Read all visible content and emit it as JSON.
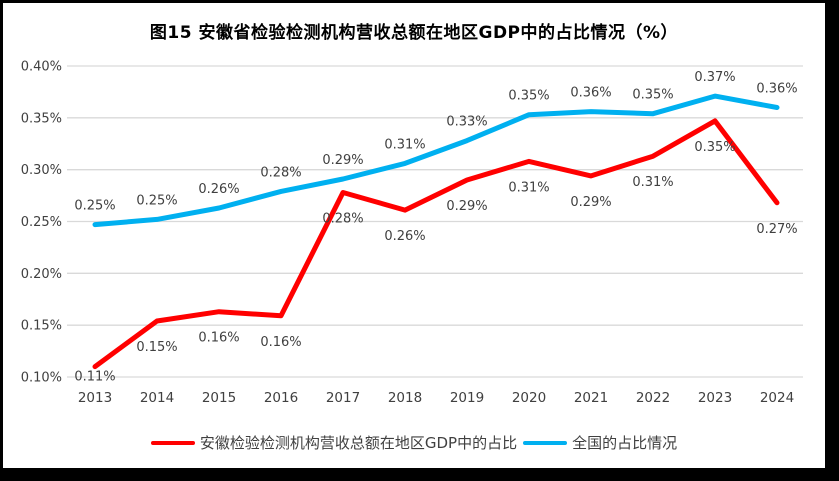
{
  "figure": {
    "label": "图15"
  },
  "chart_data": {
    "type": "line",
    "title": "图15  安徽省检验检测机构营收总额在地区GDP中的占比情况（%）",
    "xlabel": "",
    "ylabel": "",
    "unit": "%",
    "categories": [
      "2013",
      "2014",
      "2015",
      "2016",
      "2017",
      "2018",
      "2019",
      "2020",
      "2021",
      "2022",
      "2023",
      "2024"
    ],
    "y_ticks": [
      "0.40%",
      "0.35%",
      "0.30%",
      "0.25%",
      "0.20%",
      "0.15%",
      "0.10%"
    ],
    "ylim": [
      0.1,
      0.4
    ],
    "grid": "horizontal",
    "gridline_color": "#d9d9d9",
    "label_color": "#404040",
    "legend_position": "bottom",
    "series": [
      {
        "name": "安徽检验检测机构营收总额在地区GDP中的占比",
        "color": "#ff0000",
        "label_side": "below",
        "values": [
          0.11,
          0.15,
          0.16,
          0.16,
          0.28,
          0.26,
          0.29,
          0.31,
          0.29,
          0.31,
          0.35,
          0.27
        ],
        "labels": [
          "0.11%",
          "0.15%",
          "0.16%",
          "0.16%",
          "0.28%",
          "0.26%",
          "0.29%",
          "0.31%",
          "0.29%",
          "0.31%",
          "0.35%",
          "0.27%"
        ],
        "plot_values": [
          0.11,
          0.154,
          0.163,
          0.159,
          0.278,
          0.261,
          0.29,
          0.308,
          0.294,
          0.313,
          0.347,
          0.268
        ]
      },
      {
        "name": "全国的占比情况",
        "color": "#00b0f0",
        "label_side": "above",
        "values": [
          0.25,
          0.25,
          0.26,
          0.28,
          0.29,
          0.31,
          0.33,
          0.35,
          0.36,
          0.35,
          0.37,
          0.36
        ],
        "labels": [
          "0.25%",
          "0.25%",
          "0.26%",
          "0.28%",
          "0.29%",
          "0.31%",
          "0.33%",
          "0.35%",
          "0.36%",
          "0.35%",
          "0.37%",
          "0.36%"
        ],
        "plot_values": [
          0.247,
          0.252,
          0.263,
          0.279,
          0.291,
          0.306,
          0.328,
          0.353,
          0.356,
          0.354,
          0.371,
          0.36
        ]
      }
    ]
  }
}
